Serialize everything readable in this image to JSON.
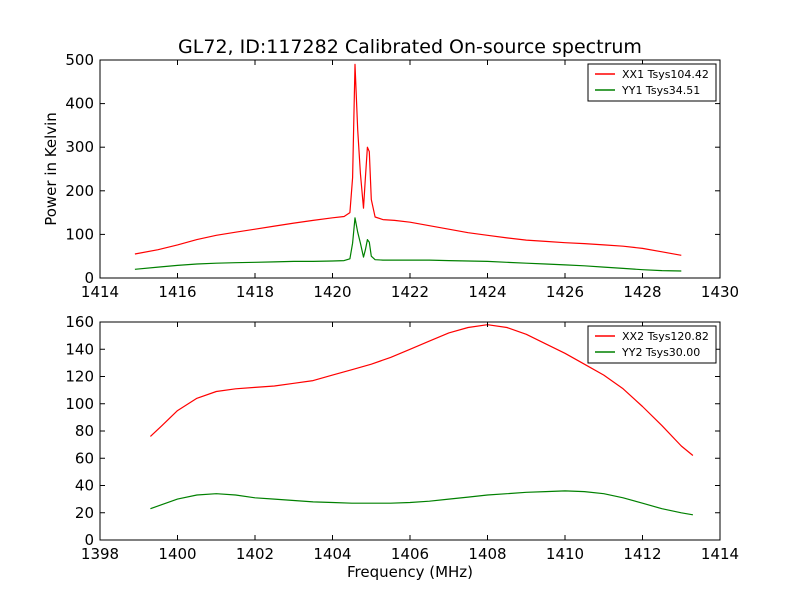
{
  "title": "GL72, ID:117282 Calibrated On-source spectrum",
  "colors": {
    "red": "#ff0000",
    "green": "#008000"
  },
  "chart_data": [
    {
      "type": "line",
      "ylabel": "Power in Kelvin",
      "xlabel": "",
      "xlim": [
        1414,
        1430
      ],
      "ylim": [
        0,
        500
      ],
      "xticks": [
        1414,
        1416,
        1418,
        1420,
        1422,
        1424,
        1426,
        1428,
        1430
      ],
      "yticks": [
        0,
        100,
        200,
        300,
        400,
        500
      ],
      "legend": "top-right",
      "series": [
        {
          "name": "XX1 Tsys104.42",
          "color": "#ff0000",
          "x": [
            1414.9,
            1415.5,
            1416.0,
            1416.5,
            1417.0,
            1417.5,
            1418.0,
            1418.5,
            1419.0,
            1419.5,
            1420.0,
            1420.3,
            1420.45,
            1420.52,
            1420.58,
            1420.65,
            1420.72,
            1420.8,
            1420.85,
            1420.9,
            1420.95,
            1421.0,
            1421.1,
            1421.3,
            1421.6,
            1422.0,
            1422.5,
            1423.0,
            1423.5,
            1424.0,
            1424.5,
            1425.0,
            1425.5,
            1426.0,
            1426.5,
            1427.0,
            1427.5,
            1428.0,
            1428.5,
            1429.0
          ],
          "values": [
            55,
            65,
            76,
            88,
            98,
            105,
            112,
            119,
            126,
            132,
            138,
            141,
            150,
            230,
            490,
            340,
            240,
            160,
            230,
            300,
            290,
            180,
            140,
            134,
            132,
            128,
            120,
            112,
            104,
            98,
            92,
            87,
            84,
            81,
            79,
            76,
            73,
            68,
            60,
            52
          ]
        },
        {
          "name": "YY1 Tsys34.51",
          "color": "#008000",
          "x": [
            1414.9,
            1415.5,
            1416.0,
            1416.5,
            1417.0,
            1417.5,
            1418.0,
            1418.5,
            1419.0,
            1419.5,
            1420.0,
            1420.3,
            1420.45,
            1420.52,
            1420.58,
            1420.65,
            1420.72,
            1420.8,
            1420.85,
            1420.9,
            1420.95,
            1421.0,
            1421.1,
            1421.3,
            1421.6,
            1422.0,
            1422.5,
            1423.0,
            1423.5,
            1424.0,
            1424.5,
            1425.0,
            1425.5,
            1426.0,
            1426.5,
            1427.0,
            1427.5,
            1428.0,
            1428.5,
            1429.0
          ],
          "values": [
            20,
            25,
            29,
            32,
            34,
            35,
            36,
            37,
            38,
            38,
            39,
            40,
            44,
            80,
            138,
            105,
            80,
            48,
            65,
            88,
            82,
            50,
            42,
            41,
            41,
            41,
            41,
            40,
            39,
            38,
            36,
            34,
            32,
            30,
            28,
            25,
            22,
            19,
            17,
            16
          ]
        }
      ]
    },
    {
      "type": "line",
      "ylabel": "",
      "xlabel": "Frequency (MHz)",
      "xlim": [
        1398,
        1414
      ],
      "ylim": [
        0,
        160
      ],
      "xticks": [
        1398,
        1400,
        1402,
        1404,
        1406,
        1408,
        1410,
        1412,
        1414
      ],
      "yticks": [
        0,
        20,
        40,
        60,
        80,
        100,
        120,
        140,
        160
      ],
      "legend": "top-right",
      "series": [
        {
          "name": "XX2 Tsys120.82",
          "color": "#ff0000",
          "x": [
            1399.3,
            1399.6,
            1400.0,
            1400.5,
            1401.0,
            1401.5,
            1402.0,
            1402.5,
            1403.0,
            1403.5,
            1404.0,
            1404.5,
            1405.0,
            1405.5,
            1406.0,
            1406.5,
            1407.0,
            1407.5,
            1408.0,
            1408.5,
            1409.0,
            1409.5,
            1410.0,
            1410.5,
            1411.0,
            1411.5,
            1412.0,
            1412.5,
            1413.0,
            1413.3
          ],
          "values": [
            76,
            84,
            95,
            104,
            109,
            111,
            112,
            113,
            115,
            117,
            121,
            125,
            129,
            134,
            140,
            146,
            152,
            156,
            158,
            156,
            151,
            144,
            137,
            129,
            121,
            111,
            98,
            84,
            69,
            62
          ]
        },
        {
          "name": "YY2 Tsys30.00",
          "color": "#008000",
          "x": [
            1399.3,
            1399.6,
            1400.0,
            1400.5,
            1401.0,
            1401.5,
            1402.0,
            1402.5,
            1403.0,
            1403.5,
            1404.0,
            1404.5,
            1405.0,
            1405.5,
            1406.0,
            1406.5,
            1407.0,
            1407.5,
            1408.0,
            1408.5,
            1409.0,
            1409.5,
            1410.0,
            1410.5,
            1411.0,
            1411.5,
            1412.0,
            1412.5,
            1413.0,
            1413.3
          ],
          "values": [
            23,
            26,
            30,
            33,
            34,
            33,
            31,
            30,
            29,
            28,
            27.5,
            27,
            27,
            27,
            27.5,
            28.5,
            30,
            31.5,
            33,
            34,
            35,
            35.5,
            36,
            35.5,
            34,
            31,
            27,
            23,
            20,
            18.5
          ]
        }
      ]
    }
  ]
}
